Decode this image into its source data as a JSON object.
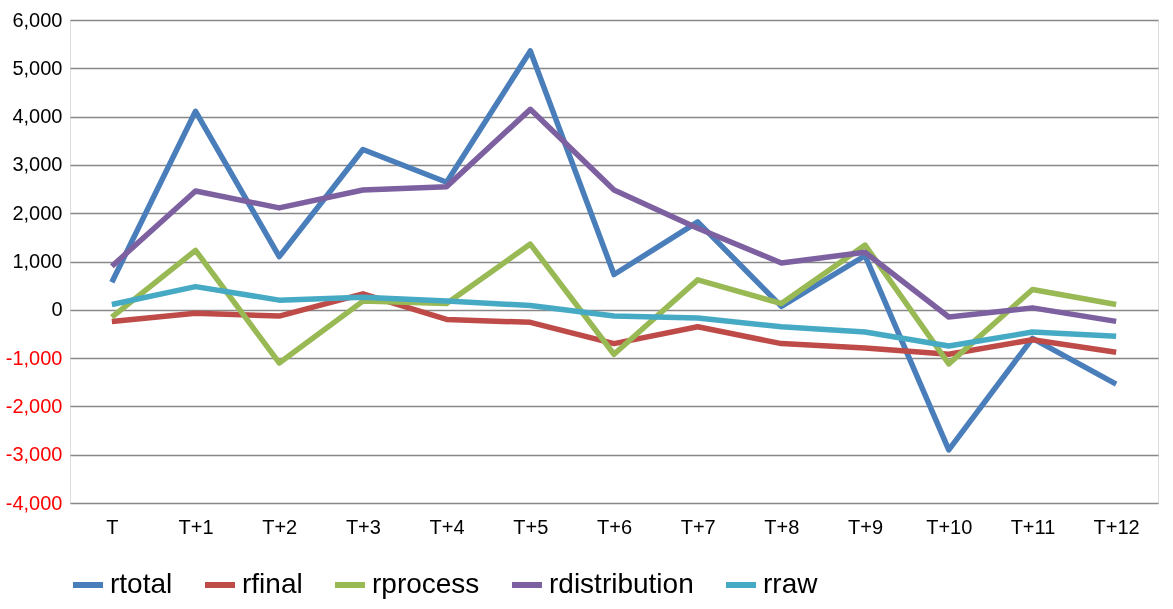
{
  "chart_data": {
    "type": "line",
    "categories": [
      "T",
      "T+1",
      "T+2",
      "T+3",
      "T+4",
      "T+5",
      "T+6",
      "T+7",
      "T+8",
      "T+9",
      "T+10",
      "T+11",
      "T+12"
    ],
    "series": [
      {
        "name": "rtotal",
        "color": "#4a7ebb",
        "values": [
          570,
          4110,
          1100,
          3320,
          2640,
          5360,
          730,
          1820,
          70,
          1120,
          -2900,
          -590,
          -1540
        ]
      },
      {
        "name": "rfinal",
        "color": "#be4b48",
        "values": [
          -240,
          -70,
          -130,
          330,
          -200,
          -260,
          -700,
          -350,
          -700,
          -790,
          -920,
          -620,
          -880
        ]
      },
      {
        "name": "rprocess",
        "color": "#98b954",
        "values": [
          -150,
          1230,
          -1100,
          180,
          130,
          1360,
          -920,
          620,
          130,
          1340,
          -1120,
          420,
          110
        ]
      },
      {
        "name": "rdistribution",
        "color": "#7d60a0",
        "values": [
          900,
          2460,
          2110,
          2480,
          2550,
          4150,
          2480,
          1690,
          970,
          1190,
          -150,
          40,
          -240
        ]
      },
      {
        "name": "rraw",
        "color": "#46aac5",
        "values": [
          110,
          480,
          200,
          260,
          180,
          90,
          -130,
          -170,
          -350,
          -460,
          -750,
          -460,
          -550
        ]
      }
    ],
    "ylim": [
      -4000,
      6000
    ],
    "yticks": [
      {
        "value": -4000,
        "label": "-4,000"
      },
      {
        "value": -3000,
        "label": "-3,000"
      },
      {
        "value": -2000,
        "label": "-2,000"
      },
      {
        "value": -1000,
        "label": "-1,000"
      },
      0,
      {
        "value": 1000,
        "label": "1,000"
      },
      {
        "value": 2000,
        "label": "2,000"
      },
      {
        "value": 3000,
        "label": "3,000"
      },
      {
        "value": 4000,
        "label": "4,000"
      },
      {
        "value": 5000,
        "label": "5,000"
      },
      {
        "value": 6000,
        "label": "6,000"
      }
    ],
    "grid": "y",
    "legend": "bottom",
    "marker": "none",
    "line_style": "solid"
  }
}
